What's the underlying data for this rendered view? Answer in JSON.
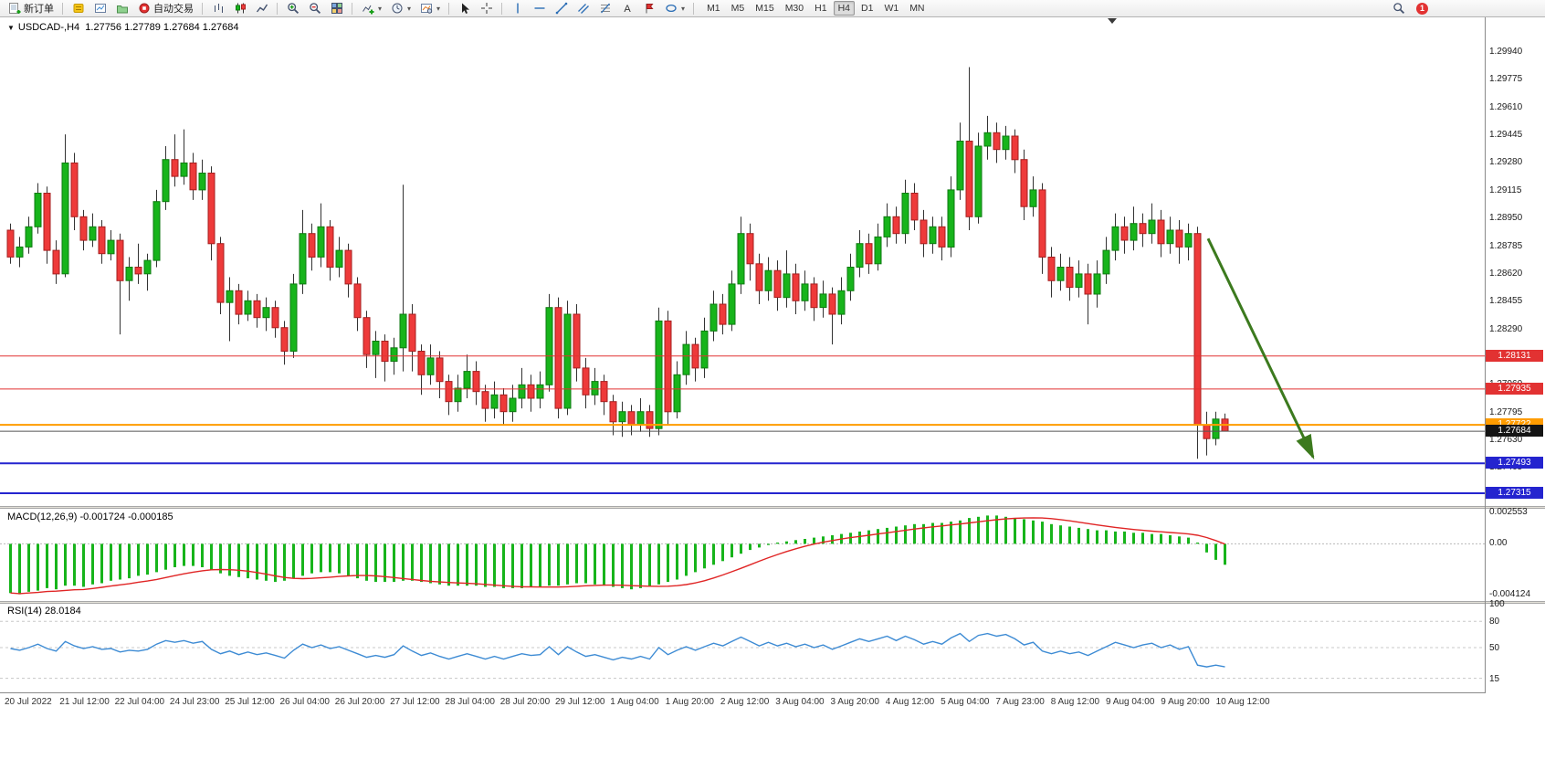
{
  "toolbar": {
    "new_order_label": "新订单",
    "autotrading_label": "自动交易",
    "timeframes": [
      "M1",
      "M5",
      "M15",
      "M30",
      "H1",
      "H4",
      "D1",
      "W1",
      "MN"
    ],
    "active_timeframe": "H4",
    "notification_count": "1"
  },
  "chart": {
    "title": "USDCAD-,H4",
    "ohlc": "1.27756 1.27789 1.27684 1.27684"
  },
  "chart_data": {
    "type": "candlestick",
    "symbol": "USDCAD",
    "period": "H4",
    "colors": {
      "up": "#17b41b",
      "up_border": "#0e7a10",
      "down": "#ee3a3a",
      "down_border": "#a51f1f",
      "wick": "#333333",
      "signal": "#e02525",
      "rsi": "#3d8bd4",
      "arrow": "#3c7a1e",
      "bid": "#555555",
      "bid_badge": "#141414"
    },
    "price_axis_labels": [
      "1.29940",
      "1.29775",
      "1.29610",
      "1.29445",
      "1.29280",
      "1.29115",
      "1.28950",
      "1.28785",
      "1.28620",
      "1.28455",
      "1.28290",
      "1.28125",
      "1.27960",
      "1.27795",
      "1.27630",
      "1.27465",
      "1.27300"
    ],
    "hlines": [
      {
        "price": 1.28131,
        "color": "#e23232",
        "label": "1.28131",
        "width": 1
      },
      {
        "price": 1.27935,
        "color": "#e23232",
        "label": "1.27935",
        "width": 1
      },
      {
        "price": 1.27722,
        "color": "#ff9c00",
        "label": "1.27722",
        "width": 2
      },
      {
        "price": 1.27493,
        "color": "#2424cf",
        "label": "1.27493",
        "width": 2
      },
      {
        "price": 1.27315,
        "color": "#2424cf",
        "label": "1.27315",
        "width": 2
      }
    ],
    "bid": {
      "price": 1.27684,
      "label": "1.27684"
    },
    "arrow": {
      "bar1": 131.5,
      "price1": 1.2883,
      "bar2": 143,
      "price2": 1.2753,
      "width": 3
    },
    "time_labels": [
      "20 Jul 2022",
      "21 Jul 12:00",
      "22 Jul 04:00",
      "24 Jul 23:00",
      "25 Jul 12:00",
      "26 Jul 04:00",
      "26 Jul 20:00",
      "27 Jul 12:00",
      "28 Jul 04:00",
      "28 Jul 20:00",
      "29 Jul 12:00",
      "1 Aug 04:00",
      "1 Aug 20:00",
      "2 Aug 12:00",
      "3 Aug 04:00",
      "3 Aug 20:00",
      "4 Aug 12:00",
      "5 Aug 04:00",
      "7 Aug 23:00",
      "8 Aug 12:00",
      "9 Aug 04:00",
      "9 Aug 20:00",
      "10 Aug 12:00"
    ],
    "candles": [
      [
        1.2888,
        1.2892,
        1.2868,
        1.2872
      ],
      [
        1.2872,
        1.2884,
        1.2866,
        1.2878
      ],
      [
        1.2878,
        1.2896,
        1.2874,
        1.289
      ],
      [
        1.289,
        1.2916,
        1.2886,
        1.291
      ],
      [
        1.291,
        1.2914,
        1.2868,
        1.2876
      ],
      [
        1.2876,
        1.2882,
        1.2856,
        1.2862
      ],
      [
        1.2862,
        1.2945,
        1.286,
        1.2928
      ],
      [
        1.2928,
        1.2934,
        1.2888,
        1.2896
      ],
      [
        1.2896,
        1.29,
        1.2876,
        1.2882
      ],
      [
        1.2882,
        1.2898,
        1.2878,
        1.289
      ],
      [
        1.289,
        1.2894,
        1.2868,
        1.2874
      ],
      [
        1.2874,
        1.2888,
        1.287,
        1.2882
      ],
      [
        1.2882,
        1.2886,
        1.2826,
        1.2858
      ],
      [
        1.2858,
        1.2872,
        1.2846,
        1.2866
      ],
      [
        1.2866,
        1.288,
        1.2856,
        1.2862
      ],
      [
        1.2862,
        1.2874,
        1.2852,
        1.287
      ],
      [
        1.287,
        1.2912,
        1.2866,
        1.2905
      ],
      [
        1.2905,
        1.2938,
        1.29,
        1.293
      ],
      [
        1.293,
        1.2945,
        1.2914,
        1.292
      ],
      [
        1.292,
        1.2948,
        1.2915,
        1.2928
      ],
      [
        1.2928,
        1.2934,
        1.2906,
        1.2912
      ],
      [
        1.2912,
        1.293,
        1.2906,
        1.2922
      ],
      [
        1.2922,
        1.2926,
        1.287,
        1.288
      ],
      [
        1.288,
        1.2884,
        1.2838,
        1.2845
      ],
      [
        1.2845,
        1.286,
        1.2822,
        1.2852
      ],
      [
        1.2852,
        1.2856,
        1.2832,
        1.2838
      ],
      [
        1.2838,
        1.2852,
        1.2834,
        1.2846
      ],
      [
        1.2846,
        1.285,
        1.283,
        1.2836
      ],
      [
        1.2836,
        1.2848,
        1.2828,
        1.2842
      ],
      [
        1.2842,
        1.2846,
        1.2824,
        1.283
      ],
      [
        1.283,
        1.2834,
        1.2808,
        1.2816
      ],
      [
        1.2816,
        1.2862,
        1.2812,
        1.2856
      ],
      [
        1.2856,
        1.29,
        1.285,
        1.2886
      ],
      [
        1.2886,
        1.2892,
        1.2864,
        1.2872
      ],
      [
        1.2872,
        1.2904,
        1.2866,
        1.289
      ],
      [
        1.289,
        1.2894,
        1.2858,
        1.2866
      ],
      [
        1.2866,
        1.2884,
        1.286,
        1.2876
      ],
      [
        1.2876,
        1.288,
        1.2848,
        1.2856
      ],
      [
        1.2856,
        1.286,
        1.2828,
        1.2836
      ],
      [
        1.2836,
        1.284,
        1.2806,
        1.2814
      ],
      [
        1.2814,
        1.2828,
        1.28,
        1.2822
      ],
      [
        1.2822,
        1.2826,
        1.2798,
        1.281
      ],
      [
        1.281,
        1.2824,
        1.2802,
        1.2818
      ],
      [
        1.2818,
        1.2915,
        1.2804,
        1.2838
      ],
      [
        1.2838,
        1.2844,
        1.2804,
        1.2816
      ],
      [
        1.2816,
        1.282,
        1.279,
        1.2802
      ],
      [
        1.2802,
        1.282,
        1.2796,
        1.2812
      ],
      [
        1.2812,
        1.2816,
        1.2788,
        1.2798
      ],
      [
        1.2798,
        1.2802,
        1.2778,
        1.2786
      ],
      [
        1.2786,
        1.2802,
        1.278,
        1.2794
      ],
      [
        1.2794,
        1.2814,
        1.2788,
        1.2804
      ],
      [
        1.2804,
        1.281,
        1.2784,
        1.2792
      ],
      [
        1.2792,
        1.2796,
        1.2774,
        1.2782
      ],
      [
        1.2782,
        1.2798,
        1.2776,
        1.279
      ],
      [
        1.279,
        1.2794,
        1.2772,
        1.278
      ],
      [
        1.278,
        1.2796,
        1.2774,
        1.2788
      ],
      [
        1.2788,
        1.2806,
        1.2782,
        1.2796
      ],
      [
        1.2796,
        1.2802,
        1.278,
        1.2788
      ],
      [
        1.2788,
        1.2804,
        1.2782,
        1.2796
      ],
      [
        1.2796,
        1.285,
        1.2792,
        1.2842
      ],
      [
        1.2842,
        1.2848,
        1.2776,
        1.2782
      ],
      [
        1.2782,
        1.2846,
        1.2778,
        1.2838
      ],
      [
        1.2838,
        1.2844,
        1.2798,
        1.2806
      ],
      [
        1.2806,
        1.2812,
        1.2782,
        1.279
      ],
      [
        1.279,
        1.2806,
        1.2784,
        1.2798
      ],
      [
        1.2798,
        1.2802,
        1.2778,
        1.2786
      ],
      [
        1.2786,
        1.279,
        1.2766,
        1.2774
      ],
      [
        1.2774,
        1.2786,
        1.2765,
        1.278
      ],
      [
        1.278,
        1.2784,
        1.2766,
        1.2772
      ],
      [
        1.2772,
        1.2788,
        1.2768,
        1.278
      ],
      [
        1.278,
        1.2784,
        1.2765,
        1.277
      ],
      [
        1.277,
        1.2842,
        1.2766,
        1.2834
      ],
      [
        1.2834,
        1.284,
        1.2772,
        1.278
      ],
      [
        1.278,
        1.281,
        1.2776,
        1.2802
      ],
      [
        1.2802,
        1.2828,
        1.2796,
        1.282
      ],
      [
        1.282,
        1.2824,
        1.2798,
        1.2806
      ],
      [
        1.2806,
        1.2836,
        1.28,
        1.2828
      ],
      [
        1.2828,
        1.2852,
        1.2822,
        1.2844
      ],
      [
        1.2844,
        1.285,
        1.2826,
        1.2832
      ],
      [
        1.2832,
        1.2864,
        1.2828,
        1.2856
      ],
      [
        1.2856,
        1.2896,
        1.285,
        1.2886
      ],
      [
        1.2886,
        1.2892,
        1.2858,
        1.2868
      ],
      [
        1.2868,
        1.2874,
        1.2844,
        1.2852
      ],
      [
        1.2852,
        1.2872,
        1.2846,
        1.2864
      ],
      [
        1.2864,
        1.287,
        1.284,
        1.2848
      ],
      [
        1.2848,
        1.2876,
        1.2842,
        1.2862
      ],
      [
        1.2862,
        1.2868,
        1.2838,
        1.2846
      ],
      [
        1.2846,
        1.2864,
        1.284,
        1.2856
      ],
      [
        1.2856,
        1.286,
        1.2834,
        1.2842
      ],
      [
        1.2842,
        1.2858,
        1.2836,
        1.285
      ],
      [
        1.285,
        1.2854,
        1.282,
        1.2838
      ],
      [
        1.2838,
        1.286,
        1.2832,
        1.2852
      ],
      [
        1.2852,
        1.2874,
        1.2846,
        1.2866
      ],
      [
        1.2866,
        1.2888,
        1.286,
        1.288
      ],
      [
        1.288,
        1.2886,
        1.2862,
        1.2868
      ],
      [
        1.2868,
        1.2892,
        1.2864,
        1.2884
      ],
      [
        1.2884,
        1.2904,
        1.2878,
        1.2896
      ],
      [
        1.2896,
        1.2902,
        1.288,
        1.2886
      ],
      [
        1.2886,
        1.2918,
        1.288,
        1.291
      ],
      [
        1.291,
        1.2916,
        1.2888,
        1.2894
      ],
      [
        1.2894,
        1.29,
        1.2872,
        1.288
      ],
      [
        1.288,
        1.2896,
        1.2874,
        1.289
      ],
      [
        1.289,
        1.2896,
        1.287,
        1.2878
      ],
      [
        1.2878,
        1.292,
        1.2872,
        1.2912
      ],
      [
        1.2912,
        1.2952,
        1.2906,
        1.2941
      ],
      [
        1.2941,
        1.2985,
        1.2888,
        1.2896
      ],
      [
        1.2896,
        1.2946,
        1.2892,
        1.2938
      ],
      [
        1.2938,
        1.2956,
        1.293,
        1.2946
      ],
      [
        1.2946,
        1.2952,
        1.2928,
        1.2936
      ],
      [
        1.2936,
        1.295,
        1.293,
        1.2944
      ],
      [
        1.2944,
        1.2948,
        1.2922,
        1.293
      ],
      [
        1.293,
        1.2936,
        1.2894,
        1.2902
      ],
      [
        1.2902,
        1.292,
        1.2896,
        1.2912
      ],
      [
        1.2912,
        1.2916,
        1.2862,
        1.2872
      ],
      [
        1.2872,
        1.2878,
        1.2848,
        1.2858
      ],
      [
        1.2858,
        1.2874,
        1.2852,
        1.2866
      ],
      [
        1.2866,
        1.2872,
        1.2846,
        1.2854
      ],
      [
        1.2854,
        1.287,
        1.2848,
        1.2862
      ],
      [
        1.2862,
        1.2868,
        1.2832,
        1.285
      ],
      [
        1.285,
        1.287,
        1.2842,
        1.2862
      ],
      [
        1.2862,
        1.2884,
        1.2856,
        1.2876
      ],
      [
        1.2876,
        1.2898,
        1.287,
        1.289
      ],
      [
        1.289,
        1.2896,
        1.2874,
        1.2882
      ],
      [
        1.2882,
        1.2902,
        1.2876,
        1.2892
      ],
      [
        1.2892,
        1.2898,
        1.2878,
        1.2886
      ],
      [
        1.2886,
        1.2904,
        1.288,
        1.2894
      ],
      [
        1.2894,
        1.29,
        1.2872,
        1.288
      ],
      [
        1.288,
        1.2896,
        1.2874,
        1.2888
      ],
      [
        1.2888,
        1.2894,
        1.2868,
        1.2878
      ],
      [
        1.2878,
        1.2892,
        1.287,
        1.2886
      ],
      [
        1.2886,
        1.289,
        1.2752,
        1.2772
      ],
      [
        1.2772,
        1.278,
        1.2754,
        1.2764
      ],
      [
        1.2764,
        1.278,
        1.276,
        1.27756
      ],
      [
        1.27756,
        1.27789,
        1.27684,
        1.27684
      ]
    ],
    "macd": {
      "label": "MACD(12,26,9) -0.001724 -0.000185",
      "axis_labels": [
        "0.002553",
        "0.00",
        "-0.004124"
      ],
      "signal_period": 9,
      "values": [
        -0.004,
        -0.0041,
        -0.0039,
        -0.0038,
        -0.0036,
        -0.0037,
        -0.0034,
        -0.0034,
        -0.0035,
        -0.0033,
        -0.0032,
        -0.003,
        -0.0029,
        -0.0028,
        -0.0026,
        -0.0025,
        -0.0023,
        -0.0021,
        -0.0019,
        -0.0018,
        -0.0018,
        -0.0019,
        -0.0021,
        -0.0024,
        -0.0026,
        -0.0027,
        -0.0028,
        -0.0029,
        -0.003,
        -0.0031,
        -0.003,
        -0.0028,
        -0.0026,
        -0.0024,
        -0.0023,
        -0.0023,
        -0.0024,
        -0.0026,
        -0.0028,
        -0.003,
        -0.0031,
        -0.0031,
        -0.0031,
        -0.003,
        -0.003,
        -0.0031,
        -0.0032,
        -0.0033,
        -0.0034,
        -0.0034,
        -0.0034,
        -0.0034,
        -0.0035,
        -0.0035,
        -0.0036,
        -0.0036,
        -0.0036,
        -0.0035,
        -0.0035,
        -0.0034,
        -0.0034,
        -0.0033,
        -0.0032,
        -0.0032,
        -0.0033,
        -0.0034,
        -0.0035,
        -0.0036,
        -0.0037,
        -0.0036,
        -0.0035,
        -0.0033,
        -0.0031,
        -0.0029,
        -0.0026,
        -0.0023,
        -0.002,
        -0.0017,
        -0.0014,
        -0.0011,
        -0.0008,
        -0.0005,
        -0.0003,
        -0.0001,
        0.0001,
        0.0002,
        0.0003,
        0.0004,
        0.0005,
        0.0006,
        0.0007,
        0.0008,
        0.0009,
        0.001,
        0.0011,
        0.0012,
        0.0013,
        0.0014,
        0.0015,
        0.0016,
        0.0016,
        0.0017,
        0.0017,
        0.0018,
        0.0019,
        0.0021,
        0.0022,
        0.0023,
        0.0023,
        0.0022,
        0.0021,
        0.002,
        0.0019,
        0.0018,
        0.0016,
        0.0015,
        0.0014,
        0.0013,
        0.0012,
        0.0011,
        0.0011,
        0.001,
        0.001,
        0.0009,
        0.0009,
        0.0008,
        0.0008,
        0.0007,
        0.0006,
        0.0005,
        0.0001,
        -0.0007,
        -0.0013,
        -0.0017
      ]
    },
    "rsi": {
      "label": "RSI(14) 28.0184",
      "axis_labels": [
        "100",
        "80",
        "50",
        "15"
      ],
      "levels": [
        80,
        50,
        15
      ],
      "values": [
        49,
        47,
        50,
        54,
        49,
        46,
        57,
        52,
        49,
        51,
        48,
        49,
        45,
        47,
        46,
        48,
        54,
        58,
        56,
        58,
        55,
        57,
        48,
        43,
        46,
        42,
        45,
        42,
        44,
        41,
        38,
        47,
        54,
        50,
        53,
        49,
        51,
        47,
        43,
        39,
        41,
        39,
        42,
        52,
        46,
        41,
        44,
        40,
        37,
        40,
        43,
        40,
        37,
        40,
        37,
        40,
        43,
        41,
        42,
        51,
        42,
        51,
        45,
        40,
        42,
        39,
        36,
        39,
        37,
        40,
        37,
        50,
        42,
        47,
        51,
        47,
        51,
        55,
        52,
        57,
        62,
        57,
        52,
        56,
        52,
        55,
        51,
        54,
        50,
        53,
        48,
        52,
        56,
        60,
        57,
        60,
        63,
        58,
        63,
        59,
        54,
        57,
        54,
        61,
        66,
        57,
        64,
        66,
        63,
        65,
        60,
        53,
        56,
        46,
        43,
        46,
        43,
        45,
        41,
        46,
        51,
        56,
        53,
        50,
        53,
        55,
        50,
        53,
        48,
        51,
        30,
        28,
        30,
        28
      ]
    }
  }
}
